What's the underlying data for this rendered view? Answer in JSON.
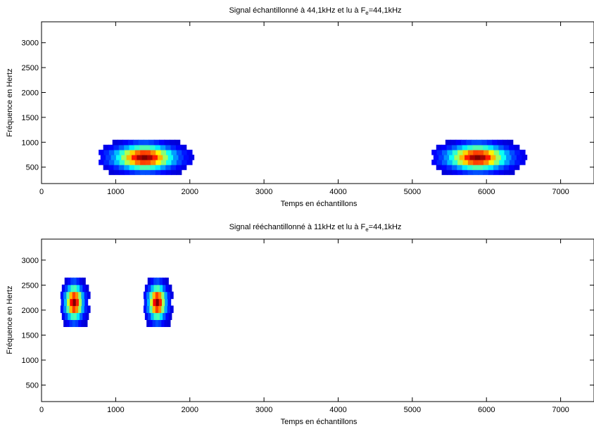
{
  "chart_data": [
    {
      "type": "heatmap",
      "title_prefix": "Signal échantillonné à 44,1kHz et lu à F",
      "title_sub": "e",
      "title_suffix": "=44,1kHz",
      "xlabel": "Temps en échantillons",
      "ylabel": "Fréquence en Hertz",
      "xlim": [
        0,
        7450
      ],
      "ylim": [
        170,
        3420
      ],
      "xticks": [
        "0",
        "1000",
        "2000",
        "3000",
        "4000",
        "5000",
        "6000",
        "7000"
      ],
      "yticks": [
        "500",
        "1000",
        "1500",
        "2000",
        "2500",
        "3000"
      ],
      "colormap": "jet",
      "grid": false,
      "blobs": [
        {
          "x_center": 1390,
          "y_center": 700,
          "x_halfwidth": 620,
          "peak_intensity": 1.0
        },
        {
          "x_center": 5880,
          "y_center": 700,
          "x_halfwidth": 620,
          "peak_intensity": 1.0
        }
      ]
    },
    {
      "type": "heatmap",
      "title_prefix": "Signal rééchantillonné à 11kHz et lu à F",
      "title_sub": "e",
      "title_suffix": "=44,1kHz",
      "xlabel": "Temps en échantillons",
      "ylabel": "Fréquence en Hertz",
      "xlim": [
        0,
        7450
      ],
      "ylim": [
        170,
        3420
      ],
      "xticks": [
        "0",
        "1000",
        "2000",
        "3000",
        "4000",
        "5000",
        "6000",
        "7000"
      ],
      "yticks": [
        "500",
        "1000",
        "1500",
        "2000",
        "2500",
        "3000"
      ],
      "colormap": "jet",
      "grid": false,
      "blobs": [
        {
          "x_center": 440,
          "y_center": 2160,
          "x_halfwidth": 185,
          "peak_intensity": 1.0
        },
        {
          "x_center": 1560,
          "y_center": 2160,
          "x_halfwidth": 185,
          "peak_intensity": 1.0
        }
      ]
    }
  ]
}
